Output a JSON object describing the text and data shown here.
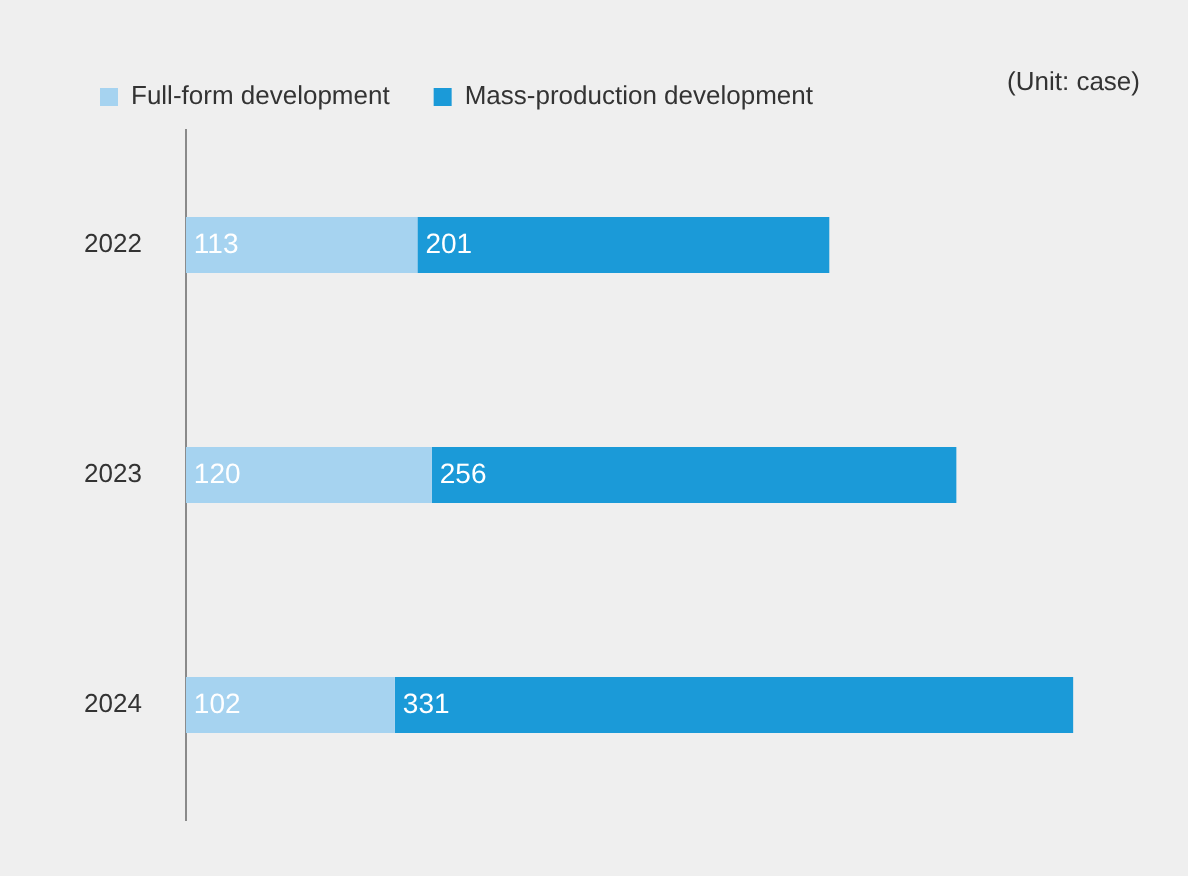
{
  "chart_data": {
    "type": "bar",
    "orientation": "horizontal",
    "stacked": true,
    "categories": [
      "2022",
      "2023",
      "2024"
    ],
    "series": [
      {
        "name": "Full-form development",
        "color": "#a6d3f0",
        "values": [
          113,
          120,
          102
        ]
      },
      {
        "name": "Mass-production development",
        "color": "#1b9ad8",
        "values": [
          201,
          256,
          331
        ]
      }
    ],
    "data_labels": true,
    "legend": "top left",
    "annotations": [
      "(Unit: case)"
    ]
  }
}
